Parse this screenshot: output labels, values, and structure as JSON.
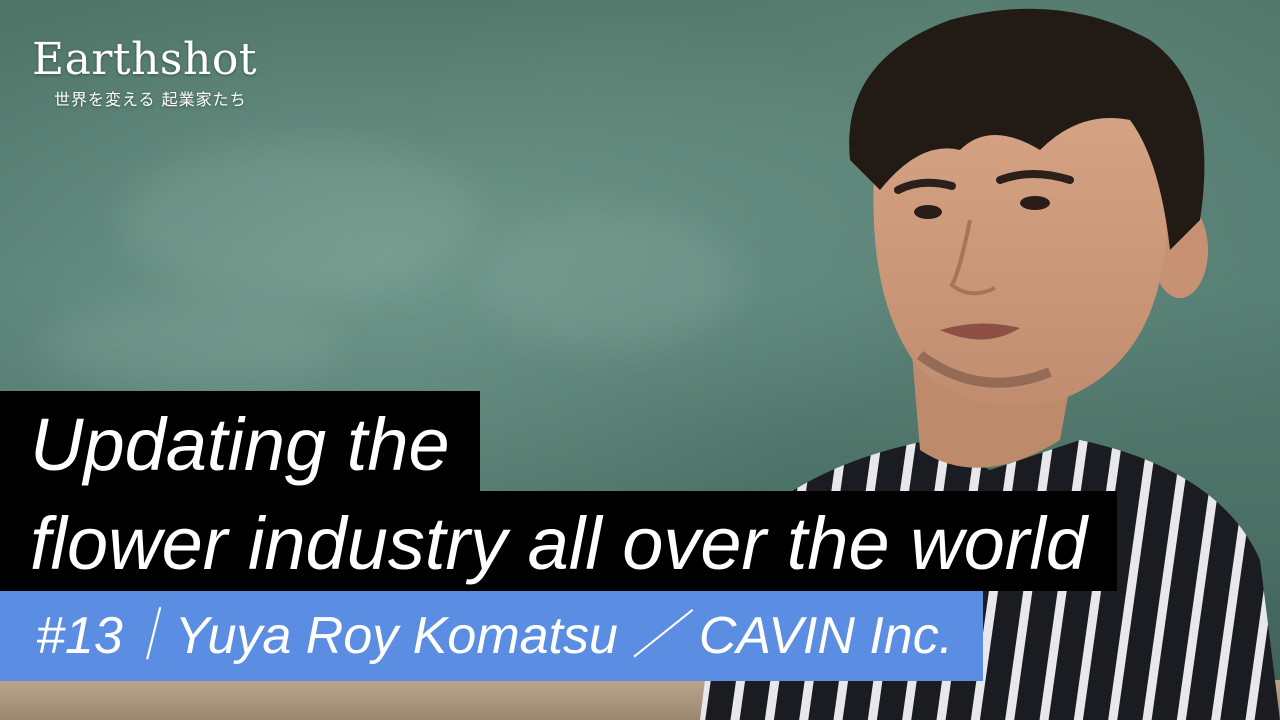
{
  "logo": {
    "title": "Earthshot",
    "subtitle": "世界を変える 起業家たち"
  },
  "headline": {
    "line1": "Updating the",
    "line2": "flower industry all over the world"
  },
  "episode": {
    "label": "#13｜Yuya Roy Komatsu ／ CAVIN Inc."
  },
  "colors": {
    "headline_bg": "#000000",
    "episode_bg": "#5b8ee3",
    "chalkboard": "#4e7468"
  }
}
